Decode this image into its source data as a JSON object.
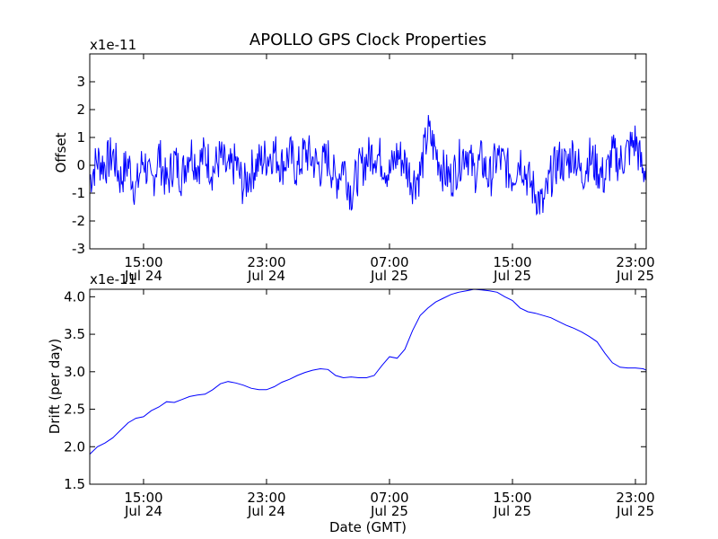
{
  "chart_data": [
    {
      "type": "line",
      "title": "APOLLO GPS Clock Properties",
      "ylabel": "Offset",
      "xlabel": "",
      "y_scale_label": "x1e-11",
      "ylim": [
        -3,
        4
      ],
      "yticks": [
        "-3",
        "-2",
        "-1",
        "0",
        "1",
        "2",
        "3"
      ],
      "x_range_hours": [
        11.5,
        47.7
      ],
      "xticks": [
        {
          "hour": 15,
          "time": "15:00",
          "date": "Jul 24"
        },
        {
          "hour": 23,
          "time": "23:00",
          "date": "Jul 24"
        },
        {
          "hour": 31,
          "time": "07:00",
          "date": "Jul 25"
        },
        {
          "hour": 39,
          "time": "15:00",
          "date": "Jul 25"
        },
        {
          "hour": 47,
          "time": "23:00",
          "date": "Jul 25"
        }
      ],
      "color": "#0000ff",
      "series": [
        {
          "x_hours": [
            11.5,
            12.0,
            12.5,
            13.0,
            13.5,
            14.0,
            14.5,
            15.0,
            15.5,
            16.0,
            16.5,
            17.0,
            17.5,
            18.0,
            18.5,
            19.0,
            19.5,
            20.0,
            20.5,
            21.0,
            21.5,
            22.0,
            22.5,
            23.0,
            23.5,
            24.0,
            24.5,
            25.0,
            25.5,
            26.0,
            26.5,
            27.0,
            27.5,
            28.0,
            28.5,
            29.0,
            29.5,
            30.0,
            30.5,
            31.0,
            31.5,
            32.0,
            32.5,
            33.0,
            33.5,
            34.0,
            34.5,
            35.0,
            35.5,
            36.0,
            36.5,
            37.0,
            37.5,
            38.0,
            38.5,
            39.0,
            39.5,
            40.0,
            40.5,
            41.0,
            41.5,
            42.0,
            42.5,
            43.0,
            43.5,
            44.0,
            44.5,
            45.0,
            45.5,
            46.0,
            46.5,
            47.0,
            47.5,
            47.7
          ],
          "values": [
            -0.5,
            0.2,
            0.0,
            0.4,
            -0.5,
            0.1,
            -0.9,
            0.3,
            -0.8,
            0.4,
            -0.7,
            0.2,
            -0.4,
            0.6,
            0.0,
            0.4,
            -0.2,
            0.3,
            -0.3,
            0.1,
            -0.8,
            -0.2,
            0.1,
            0.3,
            0.5,
            0.0,
            0.4,
            -0.2,
            0.5,
            0.2,
            -0.1,
            0.3,
            -0.6,
            0.1,
            -1.0,
            -0.2,
            0.2,
            0.5,
            0.2,
            -0.3,
            0.4,
            0.1,
            -0.6,
            -0.3,
            1.2,
            0.5,
            -0.2,
            -0.5,
            0.1,
            0.6,
            -0.3,
            0.2,
            -0.5,
            0.3,
            0.0,
            -0.4,
            0.3,
            -0.5,
            -1.0,
            -1.5,
            -0.4,
            0.2,
            0.0,
            0.5,
            -0.4,
            0.3,
            -0.1,
            -0.5,
            0.4,
            0.1,
            0.5,
            0.9,
            -0.3,
            0.1
          ]
        }
      ]
    },
    {
      "type": "line",
      "title": "",
      "ylabel": "Drift (per day)",
      "xlabel": "Date (GMT)",
      "y_scale_label": "x1e-11",
      "ylim": [
        1.5,
        4.1
      ],
      "yticks": [
        "1.5",
        "2.0",
        "2.5",
        "3.0",
        "3.5",
        "4.0"
      ],
      "x_range_hours": [
        11.5,
        47.7
      ],
      "xticks": [
        {
          "hour": 15,
          "time": "15:00",
          "date": "Jul 24"
        },
        {
          "hour": 23,
          "time": "23:00",
          "date": "Jul 24"
        },
        {
          "hour": 31,
          "time": "07:00",
          "date": "Jul 25"
        },
        {
          "hour": 39,
          "time": "15:00",
          "date": "Jul 25"
        },
        {
          "hour": 47,
          "time": "23:00",
          "date": "Jul 25"
        }
      ],
      "color": "#0000ff",
      "series": [
        {
          "x_hours": [
            11.5,
            12.0,
            12.5,
            13.0,
            13.5,
            14.0,
            14.5,
            15.0,
            15.5,
            16.0,
            16.5,
            17.0,
            17.5,
            18.0,
            18.5,
            19.0,
            19.5,
            20.0,
            20.5,
            21.0,
            21.5,
            22.0,
            22.5,
            23.0,
            23.5,
            24.0,
            24.5,
            25.0,
            25.5,
            26.0,
            26.5,
            27.0,
            27.5,
            28.0,
            28.5,
            29.0,
            29.5,
            30.0,
            30.5,
            31.0,
            31.5,
            32.0,
            32.5,
            33.0,
            33.5,
            34.0,
            34.5,
            35.0,
            35.5,
            36.0,
            36.5,
            37.0,
            37.5,
            38.0,
            38.5,
            39.0,
            39.5,
            40.0,
            40.5,
            41.0,
            41.5,
            42.0,
            42.5,
            43.0,
            43.5,
            44.0,
            44.5,
            45.0,
            45.5,
            46.0,
            46.5,
            47.0,
            47.5,
            47.7
          ],
          "values": [
            1.9,
            2.0,
            2.05,
            2.12,
            2.22,
            2.32,
            2.38,
            2.4,
            2.48,
            2.53,
            2.6,
            2.59,
            2.63,
            2.67,
            2.69,
            2.7,
            2.76,
            2.84,
            2.87,
            2.85,
            2.82,
            2.78,
            2.76,
            2.76,
            2.8,
            2.86,
            2.9,
            2.95,
            2.99,
            3.02,
            3.04,
            3.03,
            2.95,
            2.92,
            2.93,
            2.92,
            2.92,
            2.95,
            3.08,
            3.2,
            3.18,
            3.3,
            3.55,
            3.75,
            3.85,
            3.93,
            3.98,
            4.03,
            4.06,
            4.08,
            4.1,
            4.09,
            4.08,
            4.06,
            4.0,
            3.95,
            3.85,
            3.8,
            3.78,
            3.75,
            3.72,
            3.67,
            3.62,
            3.58,
            3.53,
            3.47,
            3.4,
            3.25,
            3.12,
            3.06,
            3.05,
            3.05,
            3.04,
            3.02
          ]
        }
      ]
    }
  ]
}
